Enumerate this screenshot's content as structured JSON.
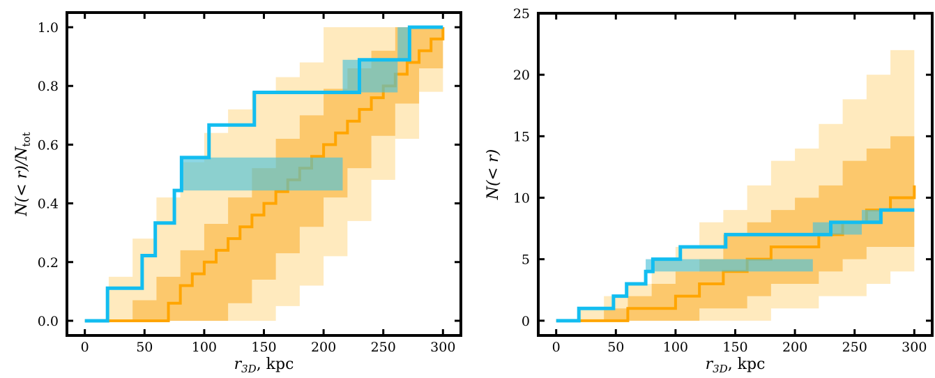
{
  "chart_data": [
    {
      "type": "line",
      "xlabel": "r_3D, kpc",
      "ylabel": "N(< r)/N_tot",
      "xlim": [
        -15,
        315
      ],
      "ylim": [
        -0.05,
        1.05
      ],
      "xticks": [
        0,
        50,
        100,
        150,
        200,
        250,
        300
      ],
      "yticks": [
        0.0,
        0.2,
        0.4,
        0.6,
        0.8,
        1.0
      ],
      "ytick_labels": [
        "0.0",
        "0.2",
        "0.4",
        "0.6",
        "0.8",
        "1.0"
      ],
      "colors": {
        "light_band": "#ffe6b3",
        "dark_band": "#fcc25e",
        "median": "#ffa500",
        "observed": "#13bdf0",
        "observed_band": "#4ec2d9"
      },
      "series": [
        {
          "role": "light-band",
          "x": [
            0,
            20,
            40,
            60,
            80,
            100,
            120,
            140,
            160,
            180,
            200,
            220,
            240,
            260,
            280,
            300
          ],
          "upper": [
            0.0,
            0.15,
            0.28,
            0.42,
            0.54,
            0.64,
            0.72,
            0.78,
            0.83,
            0.88,
            1.0,
            1.0,
            1.0,
            1.0,
            1.0,
            1.0
          ],
          "lower": [
            0.0,
            0.0,
            0.0,
            0.0,
            0.0,
            0.0,
            0.0,
            0.0,
            0.05,
            0.12,
            0.22,
            0.34,
            0.48,
            0.62,
            0.78,
            1.0
          ]
        },
        {
          "role": "dark-band",
          "x": [
            0,
            20,
            40,
            60,
            80,
            100,
            120,
            140,
            160,
            180,
            200,
            220,
            240,
            260,
            280,
            300
          ],
          "upper": [
            0.0,
            0.0,
            0.07,
            0.15,
            0.24,
            0.33,
            0.42,
            0.52,
            0.62,
            0.7,
            0.79,
            0.86,
            0.92,
            1.0,
            1.0,
            1.0
          ],
          "lower": [
            0.0,
            0.0,
            0.0,
            0.0,
            0.0,
            0.0,
            0.06,
            0.14,
            0.23,
            0.32,
            0.42,
            0.52,
            0.63,
            0.74,
            0.86,
            1.0
          ]
        },
        {
          "role": "median",
          "x": [
            0,
            20,
            40,
            60,
            70,
            80,
            90,
            100,
            110,
            120,
            130,
            140,
            150,
            160,
            170,
            180,
            190,
            200,
            210,
            220,
            230,
            240,
            250,
            260,
            270,
            280,
            290,
            300
          ],
          "values": [
            0.0,
            0.0,
            0.0,
            0.0,
            0.06,
            0.12,
            0.16,
            0.2,
            0.24,
            0.28,
            0.32,
            0.36,
            0.4,
            0.44,
            0.48,
            0.52,
            0.56,
            0.6,
            0.64,
            0.68,
            0.72,
            0.76,
            0.8,
            0.84,
            0.88,
            0.92,
            0.96,
            1.0
          ]
        },
        {
          "role": "observed-band",
          "x": [
            80,
            85,
            216,
            230,
            262,
            272
          ],
          "upper": [
            0.556,
            0.556,
            0.889,
            0.889,
            1.0,
            1.0
          ],
          "lower": [
            0.444,
            0.444,
            0.778,
            0.778,
            0.889,
            0.889
          ]
        },
        {
          "role": "observed",
          "x": [
            0,
            19,
            48,
            59,
            75,
            81,
            104,
            142,
            230,
            272,
            300
          ],
          "values": [
            0.0,
            0.111,
            0.222,
            0.333,
            0.444,
            0.556,
            0.667,
            0.778,
            0.889,
            1.0,
            1.0
          ]
        }
      ]
    },
    {
      "type": "line",
      "xlabel": "r_3D, kpc",
      "ylabel": "N(< r)",
      "xlim": [
        -15,
        315
      ],
      "ylim": [
        -1.2,
        25
      ],
      "xticks": [
        0,
        50,
        100,
        150,
        200,
        250,
        300
      ],
      "yticks": [
        0,
        5,
        10,
        15,
        20,
        25
      ],
      "ytick_labels": [
        "0",
        "5",
        "10",
        "15",
        "20",
        "25"
      ],
      "colors": {
        "light_band": "#ffe6b3",
        "dark_band": "#fcc25e",
        "median": "#ffa500",
        "observed": "#13bdf0",
        "observed_band": "#4ec2d9"
      },
      "series": [
        {
          "role": "light-band",
          "x": [
            0,
            20,
            40,
            60,
            80,
            100,
            120,
            140,
            160,
            180,
            200,
            220,
            240,
            260,
            280,
            300
          ],
          "upper": [
            0,
            1,
            2,
            3,
            5,
            6,
            8,
            9,
            11,
            13,
            14,
            16,
            18,
            20,
            22,
            24
          ],
          "lower": [
            0,
            0,
            0,
            0,
            0,
            0,
            0,
            0,
            0,
            1,
            1,
            2,
            2,
            3,
            4,
            4
          ]
        },
        {
          "role": "dark-band",
          "x": [
            0,
            20,
            40,
            60,
            80,
            100,
            120,
            140,
            160,
            180,
            200,
            220,
            240,
            260,
            280,
            300
          ],
          "upper": [
            0,
            0,
            1,
            2,
            3,
            4,
            5,
            7,
            8,
            9,
            10,
            11,
            13,
            14,
            15,
            17
          ],
          "lower": [
            0,
            0,
            0,
            0,
            0,
            0,
            1,
            1,
            2,
            3,
            3,
            4,
            5,
            6,
            6,
            7
          ]
        },
        {
          "role": "median",
          "x": [
            0,
            20,
            60,
            100,
            120,
            140,
            160,
            180,
            200,
            220,
            240,
            260,
            280,
            300
          ],
          "values": [
            0,
            0,
            1,
            2,
            3,
            4,
            5,
            6,
            6,
            7,
            8,
            9,
            10,
            11
          ]
        },
        {
          "role": "observed-band",
          "x": [
            75,
            86,
            215,
            232,
            256,
            272
          ],
          "upper": [
            5,
            5,
            8,
            8,
            9,
            9
          ],
          "lower": [
            4,
            4,
            7,
            7,
            8,
            8
          ]
        },
        {
          "role": "observed",
          "x": [
            0,
            19,
            48,
            59,
            75,
            81,
            104,
            142,
            230,
            272,
            300
          ],
          "values": [
            0,
            1,
            2,
            3,
            4,
            5,
            6,
            7,
            8,
            9,
            9
          ]
        }
      ]
    }
  ]
}
